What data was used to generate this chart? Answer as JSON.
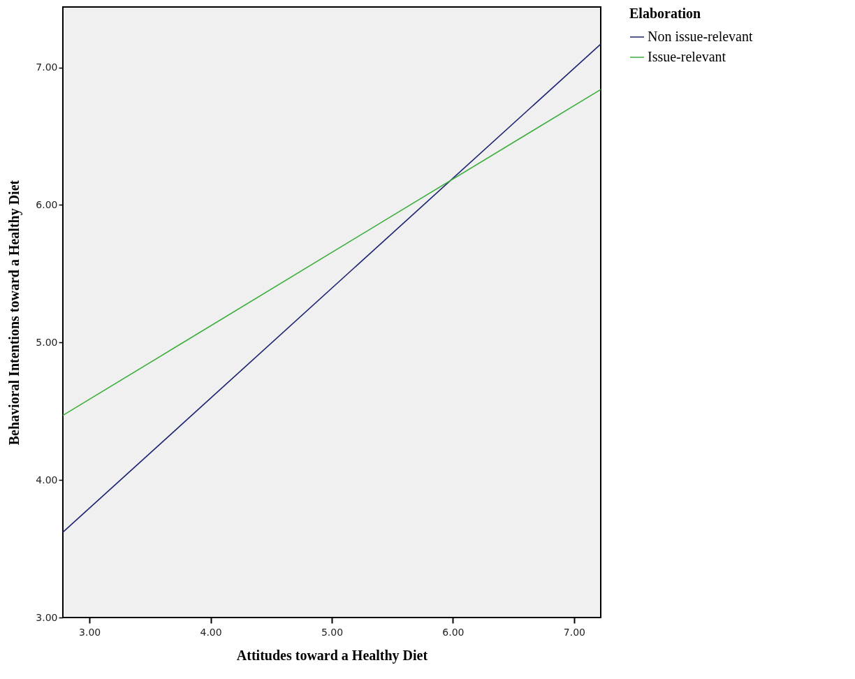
{
  "chart_data": {
    "type": "line",
    "xlabel": "Attitudes toward a Healthy Diet",
    "ylabel": "Behavioral Intentions toward a Healthy Diet",
    "legend_title": "Elaboration",
    "x": [
      2.78,
      7.22
    ],
    "series": [
      {
        "name": "Non issue-relevant",
        "color": "#1c2270",
        "values": [
          3.62,
          7.17
        ]
      },
      {
        "name": "Issue-relevant",
        "color": "#3cae3c",
        "values": [
          4.47,
          6.84
        ]
      }
    ],
    "xlim": [
      2.78,
      7.22
    ],
    "xticks": [
      {
        "value": 3,
        "label": "3.00"
      },
      {
        "value": 4,
        "label": "4.00"
      },
      {
        "value": 5,
        "label": "5.00"
      },
      {
        "value": 6,
        "label": "6.00"
      },
      {
        "value": 7,
        "label": "7.00"
      }
    ],
    "ylim": [
      3,
      7.44
    ],
    "yticks": [
      {
        "value": 3,
        "label": "3.00"
      },
      {
        "value": 4,
        "label": "4.00"
      },
      {
        "value": 5,
        "label": "5.00"
      },
      {
        "value": 6,
        "label": "6.00"
      },
      {
        "value": 7,
        "label": "7.00"
      }
    ],
    "grid": false,
    "legend": "right",
    "line_style": "solid",
    "marker": "none"
  }
}
